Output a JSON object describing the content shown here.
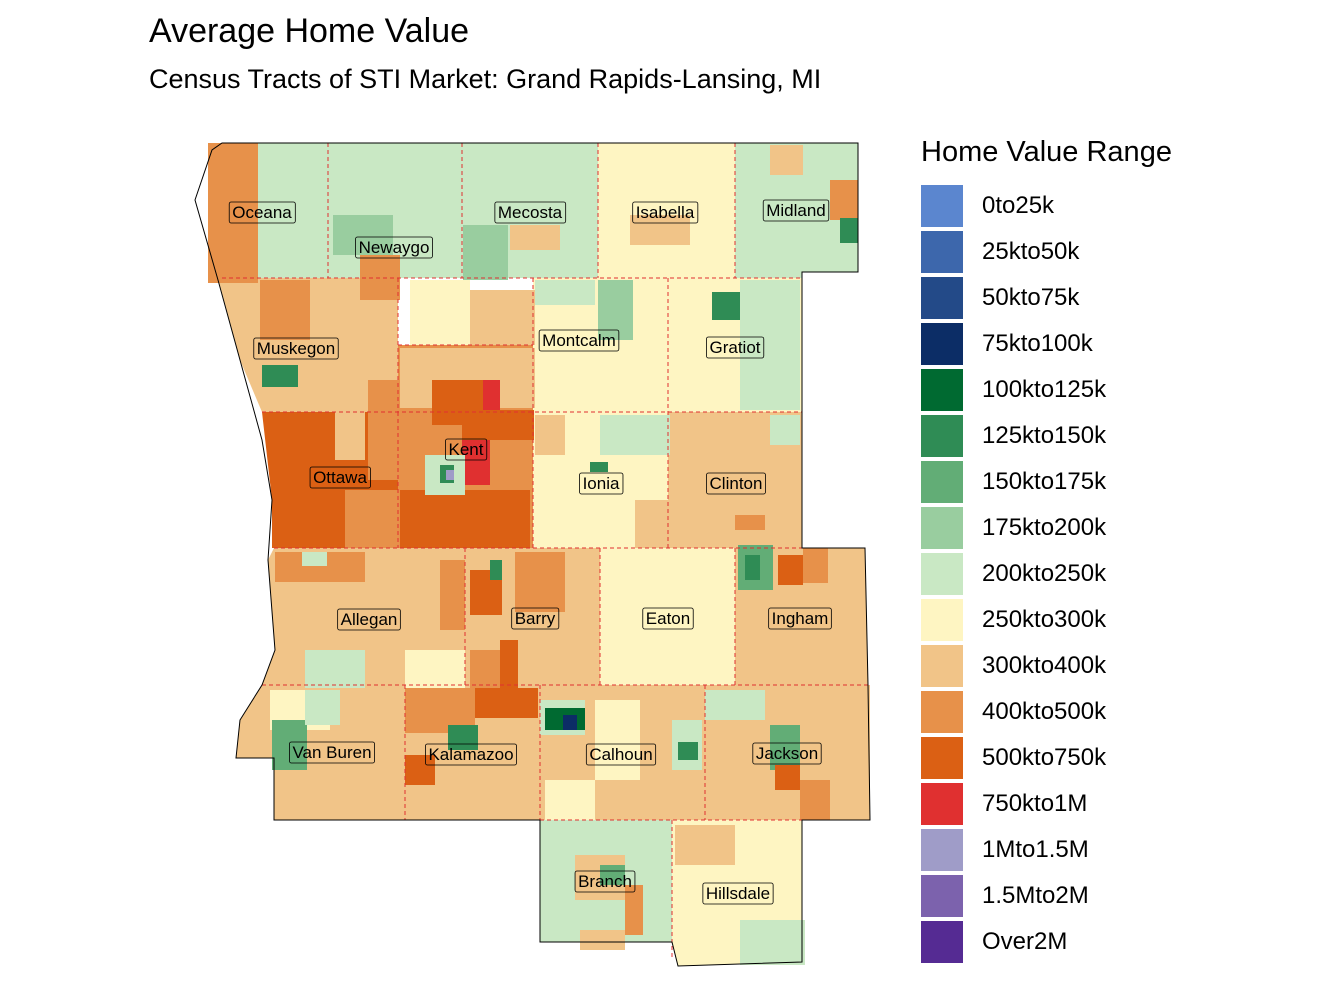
{
  "title": "Average Home Value",
  "subtitle": "Census Tracts of STI Market: Grand Rapids-Lansing, MI",
  "legend": {
    "title": "Home Value Range",
    "items": [
      {
        "label": "0to25k",
        "color": "#5b86cf"
      },
      {
        "label": "25kto50k",
        "color": "#3d67ac"
      },
      {
        "label": "50kto75k",
        "color": "#234a88"
      },
      {
        "label": "75kto100k",
        "color": "#0c2d66"
      },
      {
        "label": "100kto125k",
        "color": "#006a31"
      },
      {
        "label": "125kto150k",
        "color": "#2f8c55"
      },
      {
        "label": "150kto175k",
        "color": "#62ad76"
      },
      {
        "label": "175kto200k",
        "color": "#99cd9f"
      },
      {
        "label": "200kto250k",
        "color": "#c9e8c4"
      },
      {
        "label": "250kto300k",
        "color": "#fef5c2"
      },
      {
        "label": "300kto400k",
        "color": "#f1c488"
      },
      {
        "label": "400kto500k",
        "color": "#e7914a"
      },
      {
        "label": "500kto750k",
        "color": "#db6014"
      },
      {
        "label": "750kto1M",
        "color": "#e03030"
      },
      {
        "label": "1Mto1.5M",
        "color": "#9f9cc8"
      },
      {
        "label": "1.5Mto2M",
        "color": "#7c62ad"
      },
      {
        "label": "Over2M",
        "color": "#552b93"
      }
    ]
  },
  "counties": [
    {
      "name": "Oceana",
      "fill": "#c9e8c4"
    },
    {
      "name": "Newaygo",
      "fill": "#c9e8c4"
    },
    {
      "name": "Mecosta",
      "fill": "#c9e8c4"
    },
    {
      "name": "Isabella",
      "fill": "#fef5c2"
    },
    {
      "name": "Midland",
      "fill": "#c9e8c4"
    },
    {
      "name": "Muskegon",
      "fill": "#f1c488"
    },
    {
      "name": "Montcalm",
      "fill": "#fef5c2"
    },
    {
      "name": "Gratiot",
      "fill": "#fef5c2"
    },
    {
      "name": "Ottawa",
      "fill": "#db6014"
    },
    {
      "name": "Kent",
      "fill": "#e7914a"
    },
    {
      "name": "Ionia",
      "fill": "#fef5c2"
    },
    {
      "name": "Clinton",
      "fill": "#f1c488"
    },
    {
      "name": "Allegan",
      "fill": "#f1c488"
    },
    {
      "name": "Barry",
      "fill": "#f1c488"
    },
    {
      "name": "Eaton",
      "fill": "#fef5c2"
    },
    {
      "name": "Ingham",
      "fill": "#f1c488"
    },
    {
      "name": "Van Buren",
      "fill": "#f1c488"
    },
    {
      "name": "Kalamazoo",
      "fill": "#f1c488"
    },
    {
      "name": "Calhoun",
      "fill": "#f1c488"
    },
    {
      "name": "Jackson",
      "fill": "#f1c488"
    },
    {
      "name": "Branch",
      "fill": "#c9e8c4"
    },
    {
      "name": "Hillsdale",
      "fill": "#fef5c2"
    }
  ]
}
